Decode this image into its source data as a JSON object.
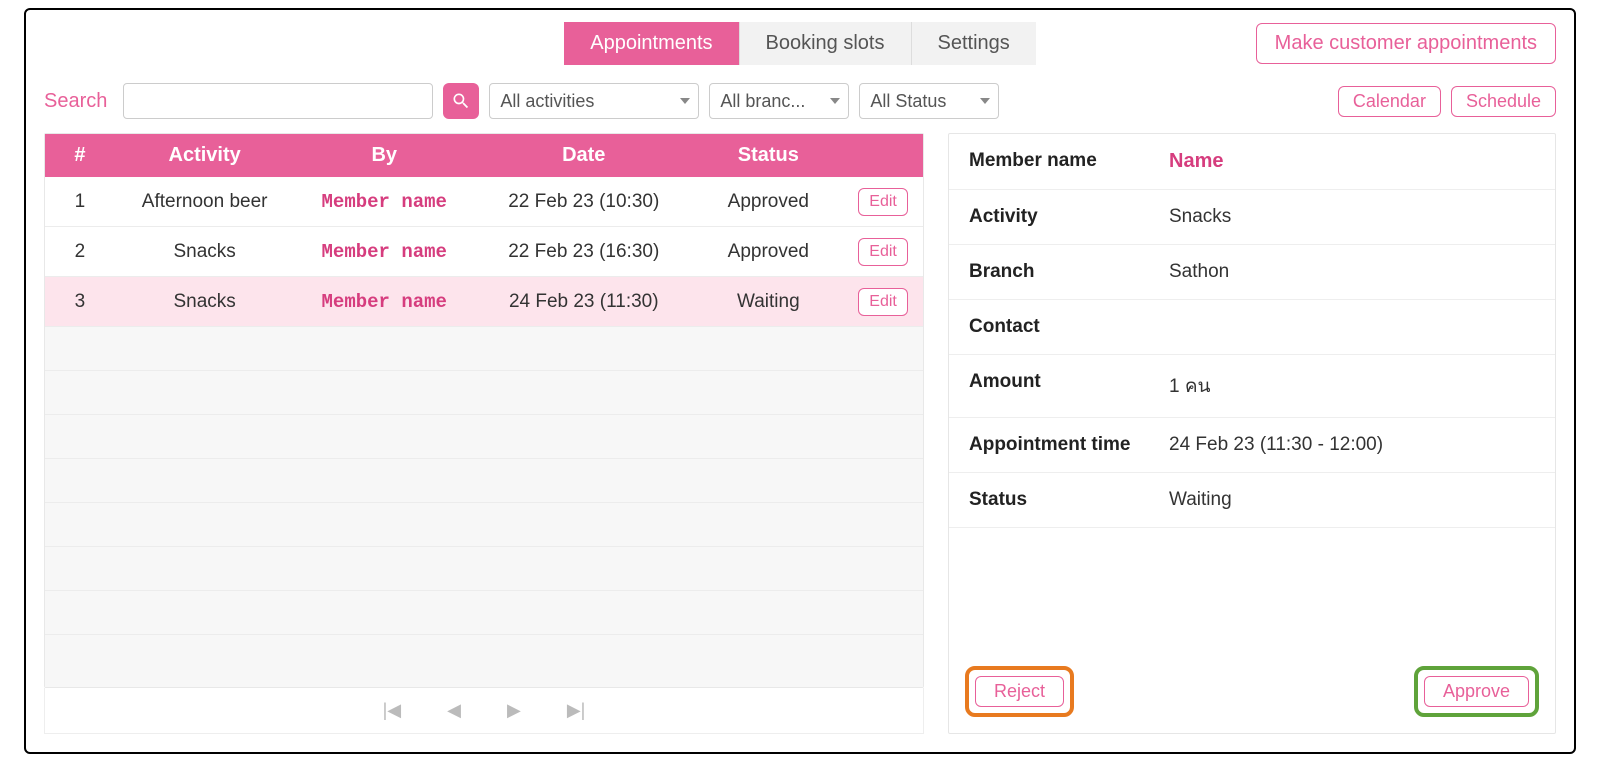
{
  "colors": {
    "accent": "#e86099",
    "accent_text": "#d63d7e",
    "highlight_reject": "#e87a1f",
    "highlight_approve": "#5fa33a",
    "row_selected_bg": "#fde4ec"
  },
  "tabs": {
    "appointments": "Appointments",
    "booking_slots": "Booking slots",
    "settings": "Settings",
    "active": "appointments"
  },
  "topbar": {
    "make_customer_appointments": "Make customer appointments"
  },
  "filters": {
    "search_label": "Search",
    "search_value": "",
    "activities_selected": "All activities",
    "branches_selected": "All branc...",
    "status_selected": "All Status",
    "calendar_btn": "Calendar",
    "schedule_btn": "Schedule"
  },
  "table": {
    "headers": {
      "num": "#",
      "activity": "Activity",
      "by": "By",
      "date": "Date",
      "status": "Status"
    },
    "edit_label": "Edit",
    "member_placeholder": "Member name",
    "rows": [
      {
        "num": "1",
        "activity": "Afternoon beer",
        "date": "22 Feb 23 (10:30)",
        "status": "Approved",
        "selected": false
      },
      {
        "num": "2",
        "activity": "Snacks",
        "date": "22 Feb 23 (16:30)",
        "status": "Approved",
        "selected": false
      },
      {
        "num": "3",
        "activity": "Snacks",
        "date": "24 Feb 23 (11:30)",
        "status": "Waiting",
        "selected": true
      }
    ],
    "empty_row_count": 7
  },
  "pager": {
    "first": "⏮",
    "prev": "◀",
    "next": "▶",
    "last": "⏭"
  },
  "detail": {
    "labels": {
      "member_name": "Member name",
      "activity": "Activity",
      "branch": "Branch",
      "contact": "Contact",
      "amount": "Amount",
      "appointment_time": "Appointment time",
      "status": "Status"
    },
    "values": {
      "member_name": "Name",
      "activity": "Snacks",
      "branch": "Sathon",
      "contact": "",
      "amount": "1 คน",
      "appointment_time": "24 Feb 23 (11:30 - 12:00)",
      "status": "Waiting"
    },
    "actions": {
      "reject": "Reject",
      "approve": "Approve"
    }
  }
}
